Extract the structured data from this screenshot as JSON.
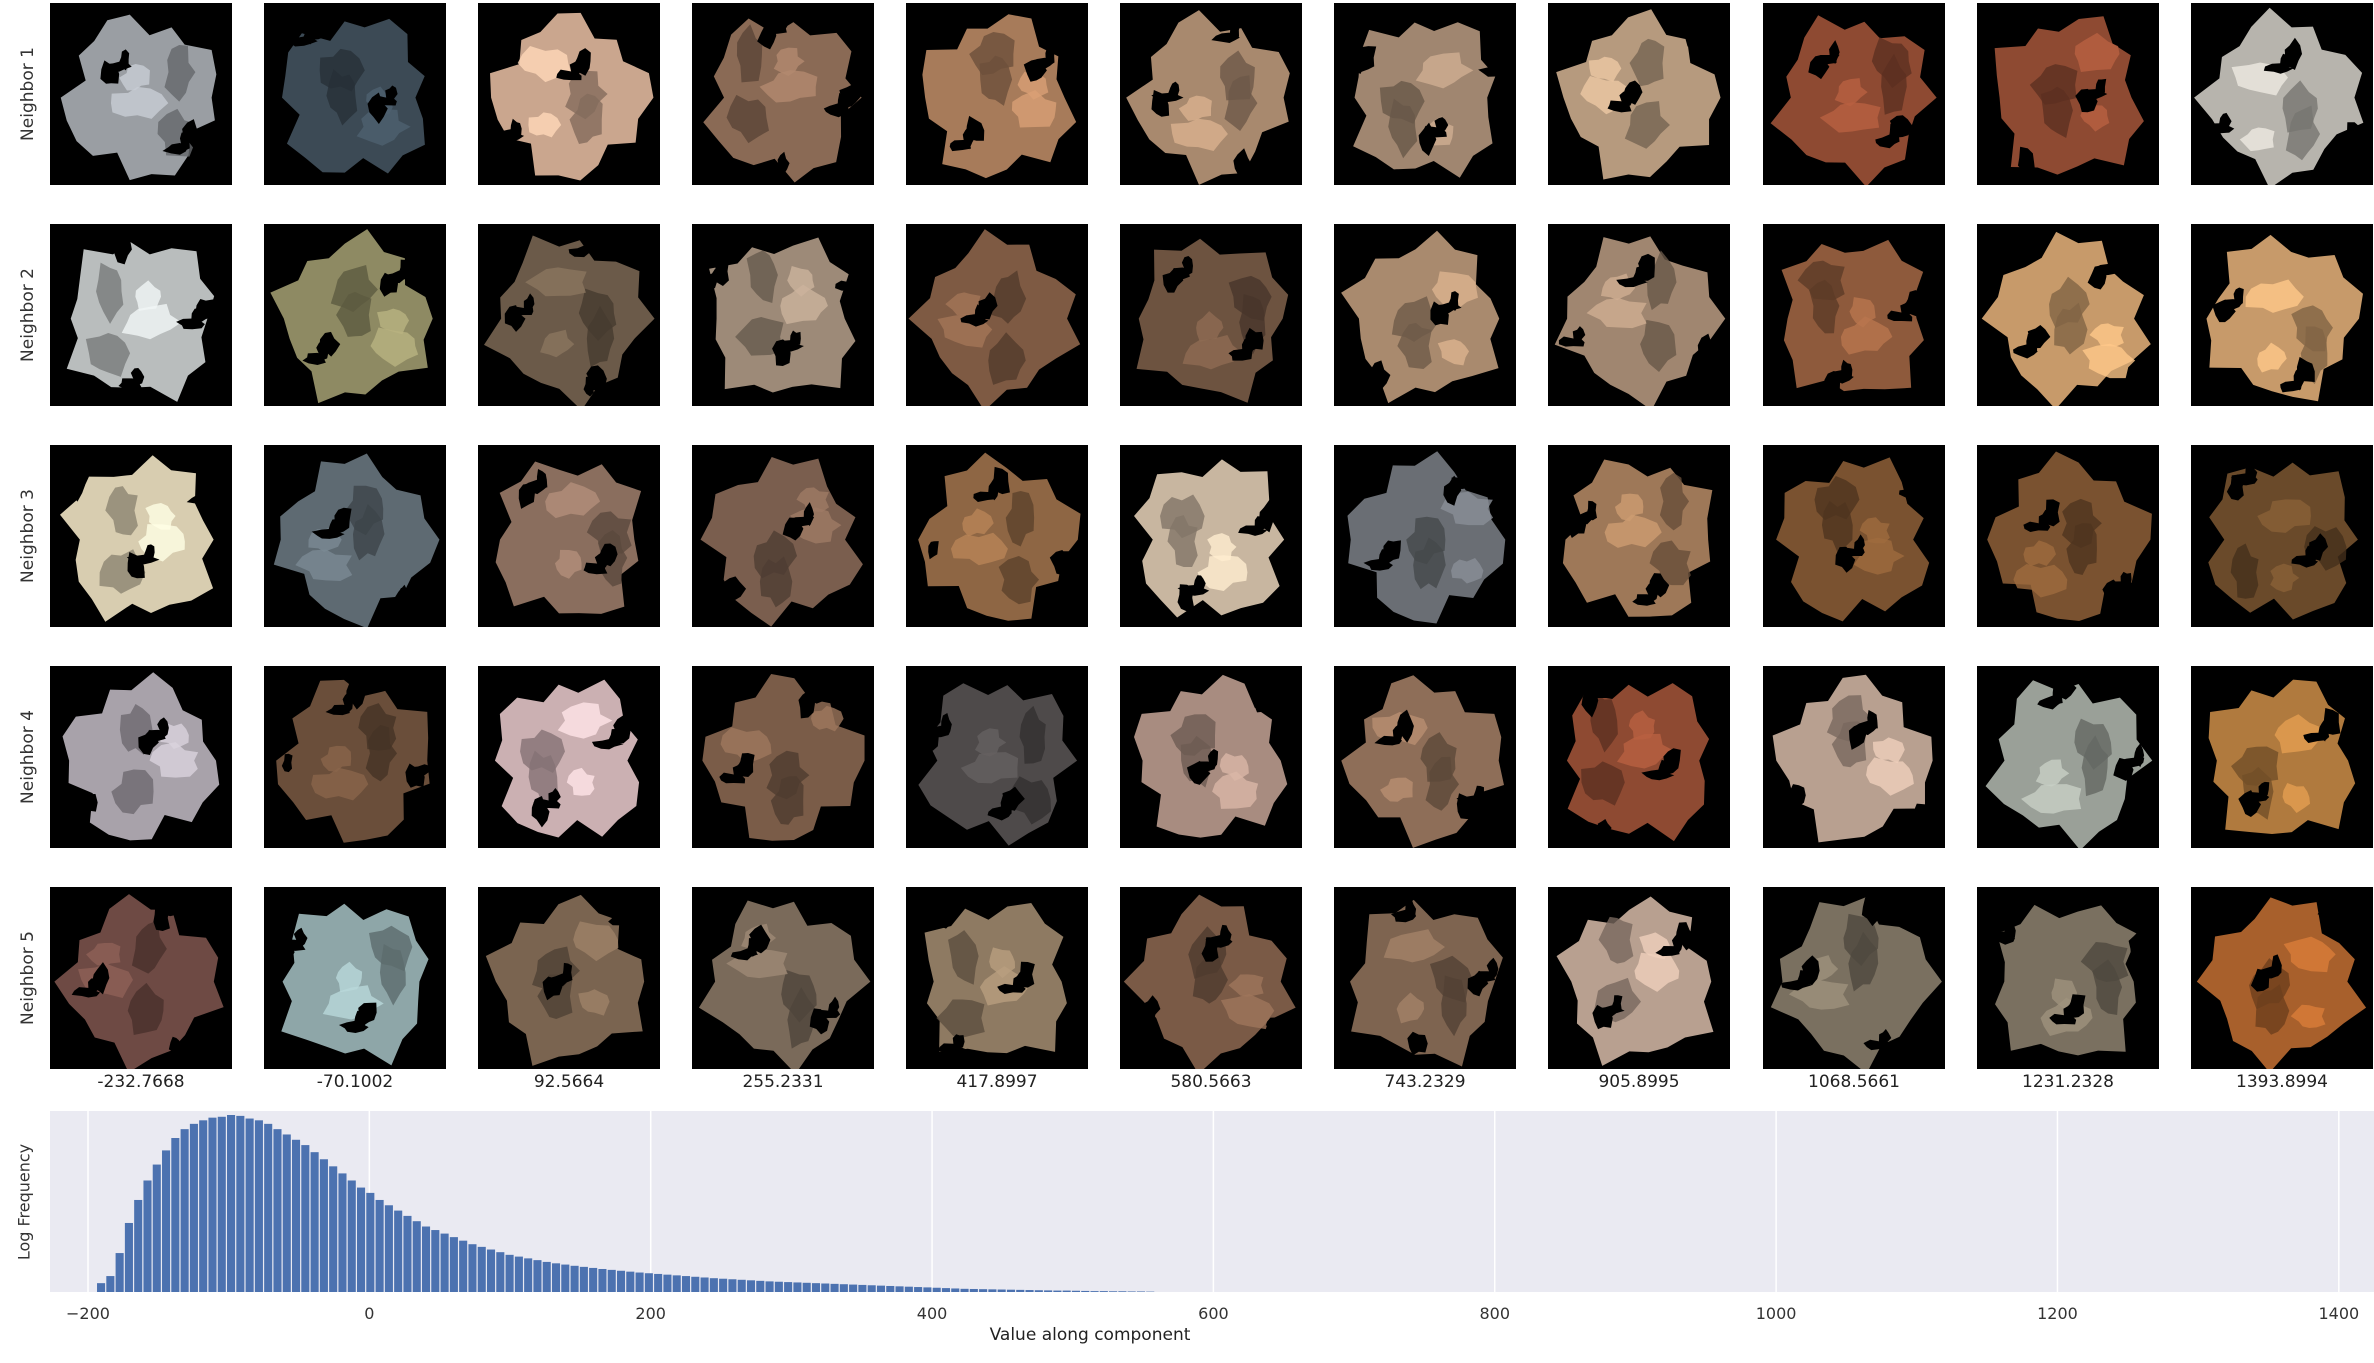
{
  "row_labels": [
    "Neighbor 1",
    "Neighbor 2",
    "Neighbor 3",
    "Neighbor 4",
    "Neighbor 5"
  ],
  "column_values": [
    "-232.7668",
    "-70.1002",
    "92.5664",
    "255.2331",
    "417.8997",
    "580.5663",
    "743.2329",
    "905.8995",
    "1068.5661",
    "1231.2328",
    "1393.8994"
  ],
  "thumbnail_palette": [
    [
      "#9a9ea3",
      "#3c4a55",
      "#caa68e",
      "#8a6a55",
      "#a77b5a",
      "#a8896e",
      "#a08670",
      "#b69a7e",
      "#8e4a32",
      "#8e4a32",
      "#b7b4ad"
    ],
    [
      "#b9bdbd",
      "#8e8a63",
      "#6b5a49",
      "#9d8a78",
      "#7e5a43",
      "#6d5340",
      "#a98a6e",
      "#a08670",
      "#8e5a3c",
      "#c79a6a",
      "#c79a6a"
    ],
    [
      "#d8cdb0",
      "#5e6a72",
      "#8a6e5e",
      "#7a5e4e",
      "#8e6644",
      "#c8b6a0",
      "#6a6e74",
      "#9e7858",
      "#7a5230",
      "#7a5230",
      "#6a4a2a"
    ],
    [
      "#a8a2aa",
      "#6a4e3a",
      "#cbb0b2",
      "#7a5c48",
      "#4e4a4a",
      "#a88c80",
      "#8e6e58",
      "#8e4a32",
      "#b8a090",
      "#9aa098",
      "#b07a3e"
    ],
    [
      "#6e4a44",
      "#8ea6a8",
      "#7a6450",
      "#7a6a5a",
      "#8e7a62",
      "#7a5a46",
      "#7e6450",
      "#b8a090",
      "#7a7060",
      "#7a7060",
      "#a8602c"
    ]
  ],
  "histogram": {
    "xlabel": "Value along component",
    "ylabel": "Log Frequency",
    "xticks": [
      "−200",
      "0",
      "200",
      "400",
      "600",
      "800",
      "1000",
      "1200",
      "1400"
    ],
    "bar_color": "#4c72b0",
    "background_color": "#eaeaf2",
    "bin_width": 6.6
  },
  "chart_data": {
    "type": "bar",
    "title": "",
    "xlabel": "Value along component",
    "ylabel": "Log Frequency",
    "xlim": [
      -227,
      1425
    ],
    "ylim": [
      0,
      1
    ],
    "grid": true,
    "bins_start": [
      -194,
      -187.4,
      -180.8,
      -174.2,
      -167.6,
      -161,
      -154.4,
      -147.8,
      -141.2,
      -134.6,
      -128,
      -121.4,
      -114.8,
      -108.2,
      -101.6,
      -95,
      -88.4,
      -81.8,
      -75.2,
      -68.6,
      -62,
      -55.4,
      -48.8,
      -42.2,
      -35.6,
      -29,
      -22.4,
      -15.8,
      -9.2,
      -2.6,
      4,
      10.6,
      17.2,
      23.8,
      30.4,
      37,
      43.6,
      50.2,
      56.8,
      63.4,
      70,
      76.6,
      83.2,
      89.8,
      96.4,
      103,
      109.6,
      116.2,
      122.8,
      129.4,
      136,
      142.6,
      149.2,
      155.8,
      162.4,
      169,
      175.6,
      182.2,
      188.8,
      195.4,
      202,
      208.6,
      215.2,
      221.8,
      228.4,
      235,
      241.6,
      248.2,
      254.8,
      261.4,
      268,
      274.6,
      281.2,
      287.8,
      294.4,
      301,
      307.6,
      314.2,
      320.8,
      327.4,
      334,
      340.6,
      347.2,
      353.8,
      360.4,
      367,
      373.6,
      380.2,
      386.8,
      393.4,
      400,
      406.6,
      413.2,
      419.8,
      426.4,
      433,
      439.6,
      446.2,
      452.8,
      459.4,
      466,
      472.6,
      479.2,
      485.8,
      492.4,
      499,
      505.6,
      512.2,
      518.8,
      525.4,
      532,
      538.6,
      545.2,
      551.8
    ],
    "values": [
      0.05,
      0.09,
      0.22,
      0.39,
      0.52,
      0.63,
      0.72,
      0.8,
      0.87,
      0.92,
      0.95,
      0.97,
      0.985,
      0.99,
      1,
      0.995,
      0.98,
      0.97,
      0.95,
      0.92,
      0.89,
      0.86,
      0.83,
      0.79,
      0.75,
      0.71,
      0.67,
      0.63,
      0.59,
      0.56,
      0.52,
      0.49,
      0.46,
      0.43,
      0.4,
      0.37,
      0.35,
      0.33,
      0.31,
      0.29,
      0.27,
      0.255,
      0.24,
      0.225,
      0.21,
      0.2,
      0.19,
      0.18,
      0.17,
      0.162,
      0.155,
      0.148,
      0.142,
      0.136,
      0.13,
      0.125,
      0.12,
      0.115,
      0.11,
      0.106,
      0.102,
      0.098,
      0.094,
      0.09,
      0.086,
      0.082,
      0.078,
      0.075,
      0.072,
      0.069,
      0.066,
      0.063,
      0.06,
      0.058,
      0.056,
      0.054,
      0.052,
      0.05,
      0.048,
      0.046,
      0.044,
      0.042,
      0.04,
      0.038,
      0.036,
      0.034,
      0.032,
      0.03,
      0.028,
      0.026,
      0.024,
      0.022,
      0.02,
      0.018,
      0.017,
      0.016,
      0.015,
      0.014,
      0.013,
      0.012,
      0.011,
      0.01,
      0.009,
      0.008,
      0.008,
      0.007,
      0.006,
      0.005,
      0.005,
      0.004,
      0.004,
      0.003,
      0.003,
      0.002
    ]
  }
}
